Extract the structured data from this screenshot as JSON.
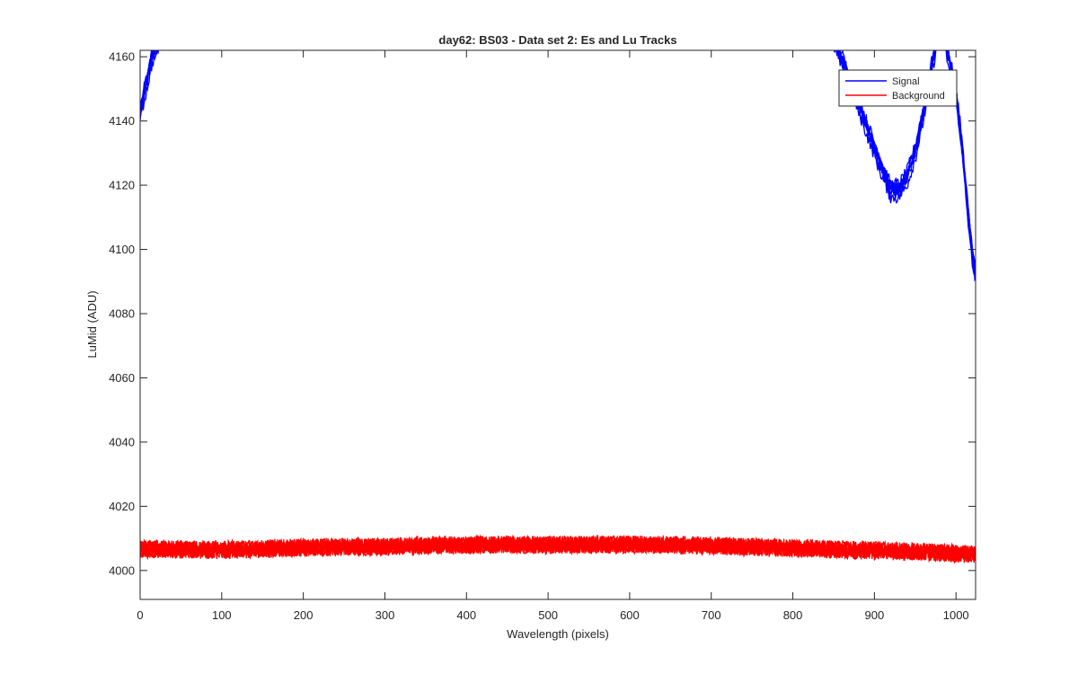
{
  "chart_data": {
    "type": "line",
    "title": "day62: BS03 - Data set 2: Es and Lu Tracks",
    "xlabel": "Wavelength (pixels)",
    "ylabel": "LuMid (ADU)",
    "xlim": [
      0,
      1024
    ],
    "ylim": [
      3991,
      4162
    ],
    "xticks": [
      0,
      100,
      200,
      300,
      400,
      500,
      600,
      700,
      800,
      900,
      1000
    ],
    "yticks": [
      4000,
      4020,
      4040,
      4060,
      4080,
      4100,
      4120,
      4140,
      4160
    ],
    "grid": false,
    "legend": {
      "position": "top-right",
      "entries": [
        "Signal",
        "Background"
      ]
    },
    "colors": {
      "Signal": "#0000ff",
      "Background": "#ff0000"
    },
    "series": [
      {
        "name": "Signal",
        "tracks": 8,
        "x": [
          0,
          5,
          10,
          15,
          20,
          25,
          820,
          850,
          870,
          890,
          910,
          920,
          930,
          940,
          950,
          960,
          970,
          975,
          980,
          985,
          990,
          1000,
          1005,
          1010,
          1015,
          1020,
          1024
        ],
        "y": [
          4142,
          4148,
          4154,
          4160,
          4163,
          4166,
          4175,
          4165,
          4152,
          4138,
          4124,
          4118,
          4118,
          4122,
          4130,
          4142,
          4156,
          4163,
          4170,
          4166,
          4160,
          4148,
          4138,
          4124,
          4110,
          4098,
          4091
        ]
      },
      {
        "name": "Background",
        "tracks": 8,
        "x": [
          0,
          100,
          200,
          300,
          400,
          500,
          600,
          700,
          800,
          900,
          1000,
          1024
        ],
        "y": [
          4006.8,
          4006.5,
          4007.2,
          4007.5,
          4008.1,
          4008.0,
          4008.2,
          4007.8,
          4007.0,
          4006.3,
          4005.5,
          4005.0
        ]
      }
    ]
  }
}
